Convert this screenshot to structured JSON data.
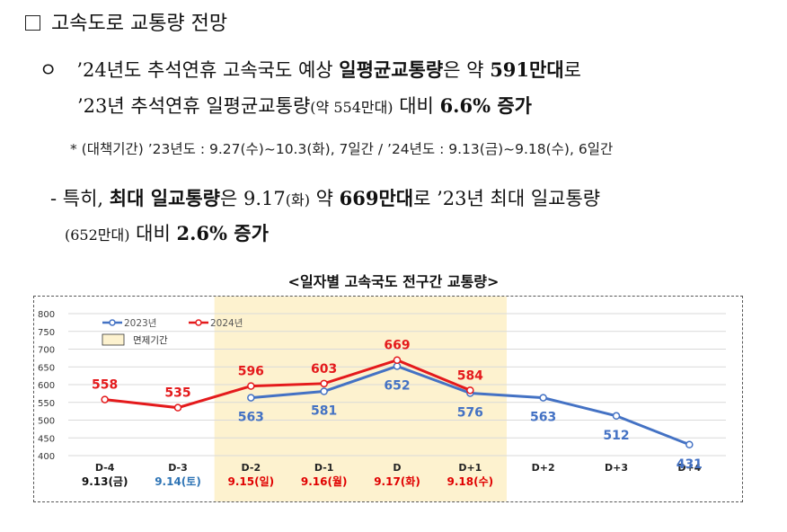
{
  "heading": "고속도로 교통량 전망",
  "bullet_symbol": "ㅇ",
  "para1": {
    "l1_a": "’24년도 추석연휴 고속국도 예상 ",
    "l1_b": "일평균교통량",
    "l1_c": "은 약 ",
    "l1_d": "591만대",
    "l1_e": "로",
    "l2_a": "’23년 추석연휴 일평균교통량",
    "l2_b": "(약 554만대)",
    "l2_c": " 대비 ",
    "l2_d": "6.6% 증가"
  },
  "note": "* (대책기간) ’23년도 : 9.27(수)~10.3(화), 7일간 / ’24년도 : 9.13(금)~9.18(수), 6일간",
  "para2": {
    "l3_a": "- 특히, ",
    "l3_b": "최대 일교통량",
    "l3_c": "은 9.17",
    "l3_d": "(화)",
    "l3_e": " 약 ",
    "l3_f": "669만대",
    "l3_g": "로 ’23년 최대 일교통량",
    "l4_a": "(652만대)",
    "l4_b": " 대비 ",
    "l4_c": "2.6% 증가"
  },
  "chart_title": "<일자별 고속국도 전구간 교통량>",
  "chart_data": {
    "type": "line",
    "categories": [
      "D-4",
      "D-3",
      "D-2",
      "D-1",
      "D",
      "D+1",
      "D+2",
      "D+3",
      "D+4"
    ],
    "dates": [
      "9.13(금)",
      "9.14(토)",
      "9.15(일)",
      "9.16(월)",
      "9.17(화)",
      "9.18(수)",
      "",
      "",
      ""
    ],
    "date_colors": [
      "#111111",
      "#2e74b5",
      "#e00000",
      "#e00000",
      "#e00000",
      "#e00000",
      "",
      "",
      ""
    ],
    "ylim": [
      400,
      800
    ],
    "yticks": [
      800,
      750,
      700,
      650,
      600,
      550,
      500,
      450,
      400
    ],
    "series": [
      {
        "name": "2023년",
        "color": "#4472c4",
        "values": [
          null,
          null,
          563,
          581,
          652,
          576,
          563,
          512,
          431
        ]
      },
      {
        "name": "2024년",
        "color": "#e41a1c",
        "values": [
          558,
          535,
          596,
          603,
          669,
          584,
          null,
          null,
          null
        ]
      }
    ],
    "highlight": {
      "label": "면제기간",
      "from_index": 2,
      "to_index": 5,
      "color": "#fdf2cf"
    },
    "legend_position": "top-left",
    "grid": true
  }
}
